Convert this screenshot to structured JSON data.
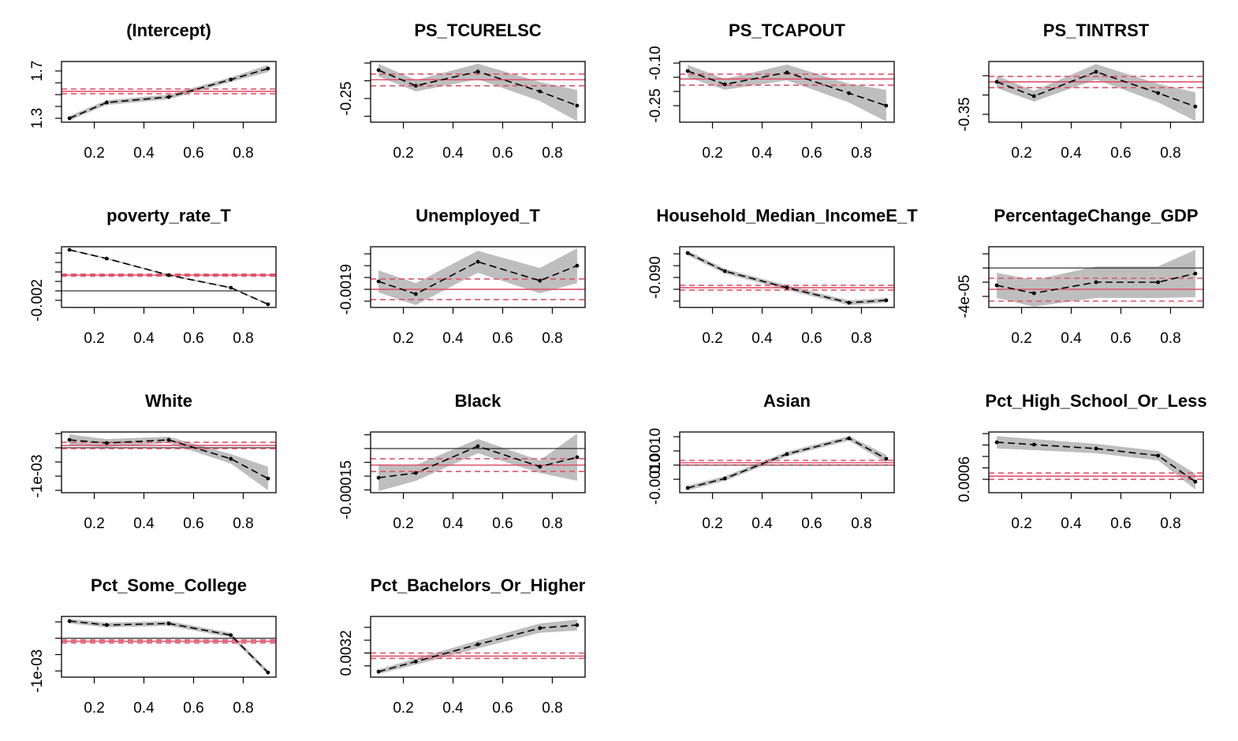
{
  "chart_data": [
    {
      "type": "quantile",
      "title": "(Intercept)",
      "x": [
        0.1,
        0.25,
        0.5,
        0.75,
        0.9
      ],
      "xlim": [
        0.068,
        0.932
      ],
      "xticks": [
        0.2,
        0.4,
        0.6,
        0.8
      ],
      "values": [
        1.3,
        1.433,
        1.48,
        1.627,
        1.72
      ],
      "lower": [
        1.28,
        1.413,
        1.46,
        1.607,
        1.69
      ],
      "upper": [
        1.32,
        1.453,
        1.5,
        1.647,
        1.75
      ],
      "ols": 1.527,
      "ols_ci": [
        1.507,
        1.547
      ],
      "ylim": [
        1.267,
        1.78
      ],
      "yticks": [
        1.3,
        1.7
      ],
      "yticks_minor": [
        1.4,
        1.5,
        1.6
      ],
      "color": "#000000",
      "band_color": "#bebebe",
      "ols_color": "#df536b"
    },
    {
      "type": "quantile",
      "title": "PS_TCURELSC",
      "x": [
        0.1,
        0.25,
        0.5,
        0.75,
        0.9
      ],
      "xlim": [
        0.068,
        0.932
      ],
      "xticks": [
        0.2,
        0.4,
        0.6,
        0.8
      ],
      "values": [
        -0.17,
        -0.214,
        -0.174,
        -0.23,
        -0.27
      ],
      "lower": [
        -0.188,
        -0.23,
        -0.196,
        -0.257,
        -0.314
      ],
      "upper": [
        -0.152,
        -0.198,
        -0.152,
        -0.203,
        -0.226
      ],
      "ols": -0.197,
      "ols_ci": [
        -0.214,
        -0.181
      ],
      "ylim": [
        -0.3167,
        -0.1456
      ],
      "yticks": [
        -0.25
      ],
      "yticks_minor": [
        -0.3,
        -0.2,
        -0.15
      ],
      "color": "#000000",
      "band_color": "#bebebe",
      "ols_color": "#df536b"
    },
    {
      "type": "quantile",
      "title": "PS_TCAPOUT",
      "x": [
        0.1,
        0.25,
        0.5,
        0.75,
        0.9
      ],
      "xlim": [
        0.068,
        0.932
      ],
      "xticks": [
        0.2,
        0.4,
        0.6,
        0.8
      ],
      "values": [
        -0.128,
        -0.175,
        -0.133,
        -0.206,
        -0.25
      ],
      "lower": [
        -0.15,
        -0.194,
        -0.161,
        -0.239,
        -0.306
      ],
      "upper": [
        -0.106,
        -0.156,
        -0.105,
        -0.173,
        -0.194
      ],
      "ols": -0.156,
      "ols_ci": [
        -0.178,
        -0.139
      ],
      "ylim": [
        -0.3083,
        -0.0944
      ],
      "yticks": [
        {
          "value": -0.1,
          "label": "-0.10"
        },
        -0.25
      ],
      "yticks_minor": [
        -0.15,
        -0.2
      ],
      "color": "#000000",
      "band_color": "#bebebe",
      "ols_color": "#df536b"
    },
    {
      "type": "quantile",
      "title": "PS_TINTRST",
      "x": [
        0.1,
        0.25,
        0.5,
        0.75,
        0.9
      ],
      "xlim": [
        0.068,
        0.932
      ],
      "xticks": [
        0.2,
        0.4,
        0.6,
        0.8
      ],
      "values": [
        -0.266,
        -0.303,
        -0.24,
        -0.295,
        -0.33
      ],
      "lower": [
        -0.282,
        -0.317,
        -0.26,
        -0.319,
        -0.367
      ],
      "upper": [
        -0.25,
        -0.289,
        -0.22,
        -0.271,
        -0.293
      ],
      "ols": -0.266,
      "ols_ci": [
        -0.281,
        -0.252
      ],
      "ylim": [
        -0.3704,
        -0.2133
      ],
      "yticks": [
        -0.35
      ],
      "yticks_minor": [
        -0.3,
        -0.25
      ],
      "color": "#000000",
      "band_color": "#bebebe",
      "ols_color": "#df536b"
    },
    {
      "type": "quantile",
      "title": "poverty_rate_T",
      "x": [
        0.1,
        0.25,
        0.5,
        0.75,
        0.9
      ],
      "xlim": [
        0.068,
        0.932
      ],
      "xticks": [
        0.2,
        0.4,
        0.6,
        0.8
      ],
      "values": [
        0.00867,
        0.00683,
        0.00333,
        0.00067,
        -0.00283
      ],
      "lower": [
        0.0085,
        0.00666,
        0.00316,
        0.0005,
        -0.003
      ],
      "upper": [
        0.00884,
        0.007,
        0.0035,
        0.00084,
        -0.00266
      ],
      "ols": 0.00333,
      "ols_ci": [
        0.00313,
        0.00353
      ],
      "zero_line": 0,
      "ylim": [
        -0.0035,
        0.00933
      ],
      "yticks": [
        -0.002
      ],
      "yticks_minor": [
        0,
        0.002,
        0.004,
        0.006,
        0.008
      ],
      "color": "#000000",
      "band_color": "#bebebe",
      "ols_color": "#df536b"
    },
    {
      "type": "quantile",
      "title": "Unemployed_T",
      "x": [
        0.1,
        0.25,
        0.5,
        0.75,
        0.9
      ],
      "xlim": [
        0.068,
        0.932
      ],
      "xticks": [
        0.2,
        0.4,
        0.6,
        0.8
      ],
      "values": [
        -0.001833,
        -0.00194,
        -0.001667,
        -0.001827,
        -0.0017
      ],
      "lower": [
        -0.001926,
        -0.002033,
        -0.00176,
        -0.001934,
        -0.001847
      ],
      "upper": [
        -0.00174,
        -0.001847,
        -0.001574,
        -0.00172,
        -0.001553
      ],
      "ols": -0.0019,
      "ols_ci": [
        -0.001987,
        -0.001813
      ],
      "ylim": [
        -0.002053,
        -0.00154
      ],
      "yticks": [
        -0.0019
      ],
      "yticks_minor": [
        -0.002,
        -0.0018,
        -0.0017,
        -0.0016
      ],
      "color": "#000000",
      "band_color": "#bebebe",
      "ols_color": "#df536b"
    },
    {
      "type": "quantile",
      "title": "Household_Median_IncomeE_T",
      "x": [
        0.1,
        0.25,
        0.5,
        0.75,
        0.9
      ],
      "xlim": [
        0.068,
        0.932
      ],
      "xticks": [
        0.2,
        0.4,
        0.6,
        0.8
      ],
      "values": [
        -0.07967,
        -0.08733,
        -0.09433,
        -0.10067,
        -0.09967
      ],
      "lower": [
        -0.08067,
        -0.08833,
        -0.09533,
        -0.10167,
        -0.10067
      ],
      "upper": [
        -0.07867,
        -0.08633,
        -0.09333,
        -0.09967,
        -0.09867
      ],
      "ols": -0.09433,
      "ols_ci": [
        -0.09533,
        -0.09333
      ],
      "ylim": [
        -0.10267,
        -0.077
      ],
      "yticks": [
        {
          "value": -0.09,
          "label": "-0.090"
        }
      ],
      "yticks_minor": [
        -0.1,
        -0.095,
        -0.085,
        -0.08
      ],
      "color": "#000000",
      "band_color": "#bebebe",
      "ols_color": "#df536b"
    },
    {
      "type": "quantile",
      "title": "PercentageChange_GDP",
      "x": [
        0.1,
        0.25,
        0.5,
        0.75,
        0.9
      ],
      "xlim": [
        0.068,
        0.932
      ],
      "xticks": [
        0.2,
        0.4,
        0.6,
        0.8
      ],
      "values": [
        -2.444e-05,
        -3.556e-05,
        -2e-05,
        -2e-05,
        -7.78e-06
      ],
      "lower": [
        -4.22e-05,
        -5.45e-05,
        -4.22e-05,
        -4.22e-05,
        -4.11e-05
      ],
      "upper": [
        -6.6e-06,
        -1.67e-05,
        2.2e-06,
        2.2e-06,
        2.55e-05
      ],
      "ols": -3e-05,
      "ols_ci": [
        -4.667e-05,
        -1.444e-05
      ],
      "zero_line": 0,
      "ylim": [
        -5.556e-05,
        3e-05
      ],
      "yticks": [
        {
          "value": -4e-05,
          "label": "-4e-05"
        }
      ],
      "yticks_minor": [
        -2e-05,
        0,
        2e-05
      ],
      "color": "#000000",
      "band_color": "#bebebe",
      "ols_color": "#df536b"
    },
    {
      "type": "quantile",
      "title": "White",
      "x": [
        0.1,
        0.25,
        0.5,
        0.75,
        0.9
      ],
      "xlim": [
        0.068,
        0.932
      ],
      "xticks": [
        0.2,
        0.4,
        0.6,
        0.8
      ],
      "values": [
        0.000278,
        0.000167,
        0.000278,
        -0.000389,
        -0.001083
      ],
      "lower": [
        8.4e-05,
        2.8e-05,
        0.000167,
        -0.000556,
        -0.0015
      ],
      "upper": [
        0.000472,
        0.000306,
        0.000389,
        -0.000222,
        -0.000666
      ],
      "ols": 8.3e-05,
      "ols_ci": [
        -2.8e-05,
        0.000194
      ],
      "zero_line": 0,
      "ylim": [
        -0.001583,
        0.000556
      ],
      "yticks": [
        {
          "value": -0.001,
          "label": "-1e-03"
        }
      ],
      "yticks_minor": [
        -0.0015,
        -0.0005,
        0,
        0.0005
      ],
      "color": "#000000",
      "band_color": "#bebebe",
      "ols_color": "#df536b"
    },
    {
      "type": "quantile",
      "title": "Black",
      "x": [
        0.1,
        0.25,
        0.5,
        0.75,
        0.9
      ],
      "xlim": [
        0.068,
        0.932
      ],
      "xticks": [
        0.2,
        0.4,
        0.6,
        0.8
      ],
      "values": [
        -0.0001057,
        -8.86e-05,
        8.6e-06,
        -6.57e-05,
        -3.14e-05
      ],
      "lower": [
        -0.0001543,
        -0.0001172,
        -1.71e-05,
        -8.86e-05,
        -0.0001171
      ],
      "upper": [
        -5.71e-05,
        -6e-05,
        3.43e-05,
        -4.28e-05,
        5.43e-05
      ],
      "ols": -6e-05,
      "ols_ci": [
        -8.29e-05,
        -3.71e-05
      ],
      "zero_line": 0,
      "ylim": [
        -0.00016,
        6e-05
      ],
      "yticks": [
        -0.00015
      ],
      "yticks_minor": [
        -0.0001,
        -5e-05,
        0,
        5e-05
      ],
      "color": "#000000",
      "band_color": "#bebebe",
      "ols_color": "#df536b"
    },
    {
      "type": "quantile",
      "title": "Asian",
      "x": [
        0.1,
        0.25,
        0.5,
        0.75,
        0.9
      ],
      "xlim": [
        0.068,
        0.932
      ],
      "xticks": [
        0.2,
        0.4,
        0.6,
        0.8
      ],
      "values": [
        -0.001611,
        -0.000944,
        0.000778,
        0.001889,
        0.000444
      ],
      "lower": [
        -0.001778,
        -0.001111,
        0.000611,
        0.001722,
        0.000166
      ],
      "upper": [
        -0.001444,
        -0.000777,
        0.000945,
        0.002056,
        0.000722
      ],
      "ols": 0.000167,
      "ols_ci": [
        0,
        0.000333
      ],
      "zero_line": 0,
      "ylim": [
        -0.001944,
        0.002333
      ],
      "yticks": [
        {
          "value": -0.001,
          "label": "-0.0010"
        },
        {
          "value": 0.001,
          "label": "0.0010"
        }
      ],
      "yticks_minor": [
        0,
        0.002
      ],
      "color": "#000000",
      "band_color": "#bebebe",
      "ols_color": "#df536b"
    },
    {
      "type": "quantile",
      "title": "Pct_High_School_Or_Less",
      "x": [
        0.1,
        0.25,
        0.5,
        0.75,
        0.9
      ],
      "xlim": [
        0.068,
        0.932
      ],
      "xticks": [
        0.2,
        0.4,
        0.6,
        0.8
      ],
      "values": [
        0.001248,
        0.001207,
        0.001138,
        0.001014,
        0.000559
      ],
      "lower": [
        0.001138,
        0.00111,
        0.001055,
        0.000931,
        0.000421
      ],
      "upper": [
        0.001358,
        0.001304,
        0.001221,
        0.001097,
        0.000697
      ],
      "ols": 0.000655,
      "ols_ci": [
        0.0006,
        0.00071
      ],
      "ylim": [
        0.000366,
        0.001428
      ],
      "yticks": [
        0.0006
      ],
      "yticks_minor": [
        0.0008,
        0.001,
        0.0012,
        0.0014
      ],
      "color": "#000000",
      "band_color": "#bebebe",
      "ols_color": "#df536b"
    },
    {
      "type": "quantile",
      "title": "Pct_Some_College",
      "x": [
        0.1,
        0.25,
        0.5,
        0.75,
        0.9
      ],
      "xlim": [
        0.068,
        0.932
      ],
      "xticks": [
        0.2,
        0.4,
        0.6,
        0.8
      ],
      "values": [
        0.000524,
        0.000405,
        0.000452,
        9.5e-05,
        -0.001048
      ],
      "lower": [
        0.000453,
        0.000334,
        0.000381,
        2.4e-05,
        -0.001119
      ],
      "upper": [
        0.000595,
        0.000476,
        0.000523,
        0.000166,
        -0.000977
      ],
      "ols": -9.5e-05,
      "ols_ci": [
        -0.000143,
        -4.8e-05
      ],
      "zero_line": 0,
      "ylim": [
        -0.00119,
        0.000667
      ],
      "yticks": [
        {
          "value": -0.001,
          "label": "-1e-03"
        }
      ],
      "yticks_minor": [
        -0.0005,
        0,
        0.0005
      ],
      "color": "#000000",
      "band_color": "#bebebe",
      "ols_color": "#df536b"
    },
    {
      "type": "quantile",
      "title": "Pct_Bachelors_Or_Higher",
      "x": [
        0.1,
        0.25,
        0.5,
        0.75,
        0.9
      ],
      "xlim": [
        0.068,
        0.932
      ],
      "xticks": [
        0.2,
        0.4,
        0.6,
        0.8
      ],
      "values": [
        0.002909,
        0.003067,
        0.003333,
        0.003588,
        0.003636
      ],
      "lower": [
        0.002873,
        0.003019,
        0.003272,
        0.003515,
        0.003551
      ],
      "upper": [
        0.002945,
        0.003115,
        0.003394,
        0.003661,
        0.003721
      ],
      "ols": 0.003152,
      "ols_ci": [
        0.003115,
        0.0032
      ],
      "ylim": [
        0.002824,
        0.00377
      ],
      "yticks": [
        0.0032
      ],
      "yticks_minor": [
        0.003,
        0.0034,
        0.0036
      ],
      "color": "#000000",
      "band_color": "#bebebe",
      "ols_color": "#df536b"
    }
  ]
}
